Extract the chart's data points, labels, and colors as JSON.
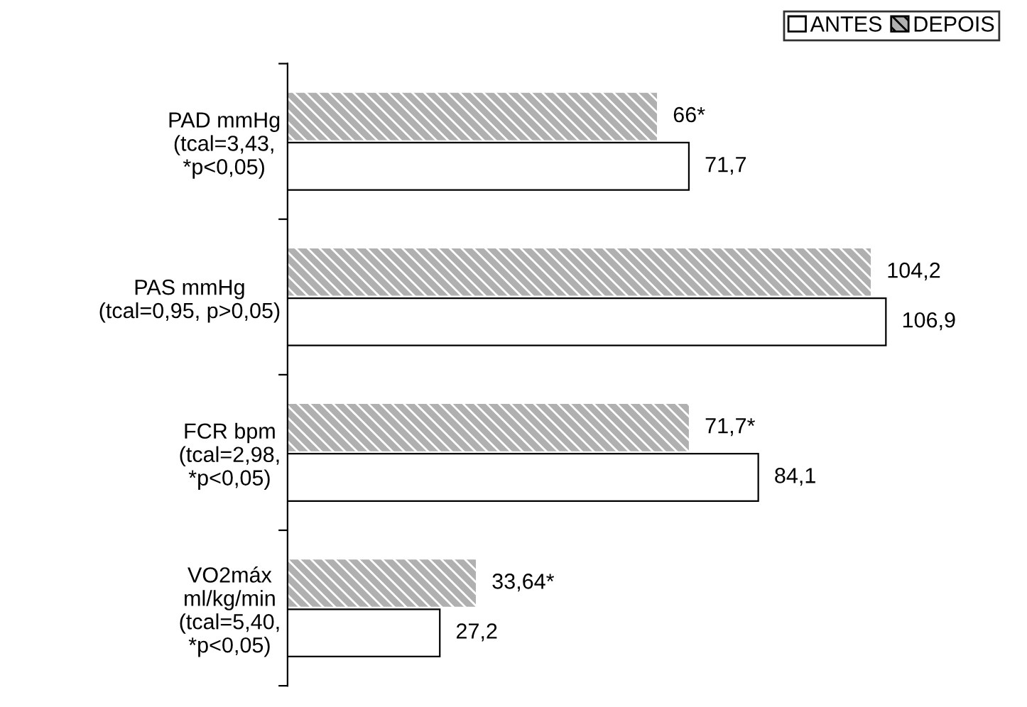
{
  "chart_data": {
    "type": "bar",
    "orientation": "horizontal",
    "categories": [
      "PAD mmHg\n(tcal=3,43,\n*p<0,05)",
      "PAS mmHg\n(tcal=0,95, p>0,05)",
      "FCR bpm\n(tcal=2,98,\n*p<0,05)",
      "VO2máx\nml/kg/min\n(tcal=5,40,\n*p<0,05)"
    ],
    "series": [
      {
        "name": "DEPOIS",
        "color": "#b0b0b0",
        "values": [
          66,
          104.2,
          71.7,
          33.64
        ],
        "value_labels": [
          "66*",
          "104,2",
          "71,7*",
          "33,64*"
        ]
      },
      {
        "name": "ANTES",
        "color": "#ffffff",
        "values": [
          71.7,
          106.9,
          84.1,
          27.2
        ],
        "value_labels": [
          "71,7",
          "106,9",
          "84,1",
          "27,2"
        ]
      }
    ],
    "legend": "top right",
    "grid": false
  }
}
